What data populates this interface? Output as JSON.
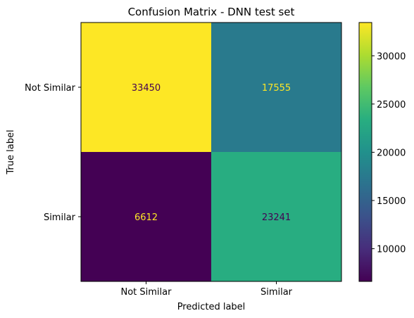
{
  "chart_data": {
    "type": "heatmap",
    "title": "Confusion Matrix - DNN test set",
    "xlabel": "Predicted label",
    "ylabel": "True label",
    "x_categories": [
      "Not Similar",
      "Similar"
    ],
    "y_categories": [
      "Not Similar",
      "Similar"
    ],
    "values": [
      [
        33450,
        17555
      ],
      [
        6612,
        23241
      ]
    ],
    "colormap": "viridis",
    "colorbar": {
      "range": [
        6612,
        33450
      ],
      "ticks": [
        10000,
        15000,
        20000,
        25000,
        30000
      ],
      "tick_labels": [
        "10000",
        "15000",
        "20000",
        "25000",
        "30000"
      ]
    },
    "grid": false
  }
}
